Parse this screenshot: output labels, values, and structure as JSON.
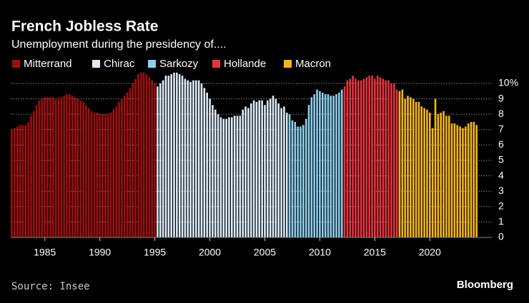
{
  "chart_data": {
    "type": "bar",
    "title": "French Jobless Rate",
    "subtitle": "Unemployment during the presidency of....",
    "source": "Source: Insee",
    "brand": "Bloomberg",
    "ylim": [
      0,
      10.8
    ],
    "yticks": [
      0,
      1,
      2,
      3,
      4,
      5,
      6,
      7,
      8,
      9,
      {
        "value": 10,
        "label": "10%"
      }
    ],
    "xlim": [
      1981.9,
      2024.4
    ],
    "xticks": [
      1985,
      1990,
      1995,
      2000,
      2005,
      2010,
      2015,
      2020
    ],
    "grid": true,
    "legend": "top",
    "series": [
      {
        "name": "Mitterrand",
        "color": "#a30d0d",
        "x": [
          1982,
          1982.25,
          1982.5,
          1982.75,
          1983,
          1983.25,
          1983.5,
          1983.75,
          1984,
          1984.25,
          1984.5,
          1984.75,
          1985,
          1985.25,
          1985.5,
          1985.75,
          1986,
          1986.25,
          1986.5,
          1986.75,
          1987,
          1987.25,
          1987.5,
          1987.75,
          1988,
          1988.25,
          1988.5,
          1988.75,
          1989,
          1989.25,
          1989.5,
          1989.75,
          1990,
          1990.25,
          1990.5,
          1990.75,
          1991,
          1991.25,
          1991.5,
          1991.75,
          1992,
          1992.25,
          1992.5,
          1992.75,
          1993,
          1993.25,
          1993.5,
          1993.75,
          1994,
          1994.25,
          1994.5,
          1994.75,
          1995
        ],
        "values": [
          7.0,
          7.1,
          7.2,
          7.3,
          7.3,
          7.3,
          7.5,
          7.9,
          8.2,
          8.6,
          8.9,
          9.0,
          9.1,
          9.1,
          9.1,
          9.1,
          9.0,
          9.1,
          9.1,
          9.2,
          9.3,
          9.3,
          9.2,
          9.1,
          9.0,
          8.9,
          8.8,
          8.6,
          8.4,
          8.2,
          8.1,
          8.1,
          8.0,
          8.0,
          8.0,
          8.0,
          8.1,
          8.3,
          8.5,
          8.8,
          9.0,
          9.2,
          9.4,
          9.7,
          10.0,
          10.3,
          10.6,
          10.7,
          10.7,
          10.6,
          10.4,
          10.2,
          10.0
        ]
      },
      {
        "name": "Chirac",
        "color": "#dcebf7",
        "x": [
          1995.25,
          1995.5,
          1995.75,
          1996,
          1996.25,
          1996.5,
          1996.75,
          1997,
          1997.25,
          1997.5,
          1997.75,
          1998,
          1998.25,
          1998.5,
          1998.75,
          1999,
          1999.25,
          1999.5,
          1999.75,
          2000,
          2000.25,
          2000.5,
          2000.75,
          2001,
          2001.25,
          2001.5,
          2001.75,
          2002,
          2002.25,
          2002.5,
          2002.75,
          2003,
          2003.25,
          2003.5,
          2003.75,
          2004,
          2004.25,
          2004.5,
          2004.75,
          2005,
          2005.25,
          2005.5,
          2005.75,
          2006,
          2006.25,
          2006.5,
          2006.75,
          2007
        ],
        "values": [
          9.8,
          10.0,
          10.2,
          10.5,
          10.5,
          10.6,
          10.7,
          10.7,
          10.6,
          10.5,
          10.3,
          10.2,
          10.1,
          10.2,
          10.2,
          10.2,
          10.0,
          9.7,
          9.4,
          9.0,
          8.6,
          8.3,
          8.0,
          7.8,
          7.7,
          7.7,
          7.8,
          7.8,
          7.9,
          7.9,
          7.9,
          8.3,
          8.5,
          8.4,
          8.7,
          8.9,
          8.8,
          8.9,
          8.9,
          8.6,
          8.9,
          9.0,
          9.2,
          9.0,
          8.7,
          8.4,
          8.5,
          8.1
        ]
      },
      {
        "name": "Sarkozy",
        "color": "#8ecfee",
        "x": [
          2007.25,
          2007.5,
          2007.75,
          2008,
          2008.25,
          2008.5,
          2008.75,
          2009,
          2009.25,
          2009.5,
          2009.75,
          2010,
          2010.25,
          2010.5,
          2010.75,
          2011,
          2011.25,
          2011.5,
          2011.75,
          2012
        ],
        "values": [
          8.0,
          7.6,
          7.5,
          7.2,
          7.2,
          7.3,
          7.7,
          8.6,
          9.1,
          9.3,
          9.6,
          9.5,
          9.4,
          9.3,
          9.3,
          9.2,
          9.2,
          9.3,
          9.4,
          9.6
        ]
      },
      {
        "name": "Hollande",
        "color": "#e6343e",
        "x": [
          2012.25,
          2012.5,
          2012.75,
          2013,
          2013.25,
          2013.5,
          2013.75,
          2014,
          2014.25,
          2014.5,
          2014.75,
          2015,
          2015.25,
          2015.5,
          2015.75,
          2016,
          2016.25,
          2016.5,
          2016.75,
          2017
        ],
        "values": [
          9.8,
          10.2,
          10.3,
          10.5,
          10.3,
          10.2,
          10.2,
          10.3,
          10.4,
          10.5,
          10.5,
          10.3,
          10.5,
          10.4,
          10.3,
          10.2,
          10.2,
          10.0,
          10.0,
          9.6
        ]
      },
      {
        "name": "Macron",
        "color": "#f4b61a",
        "x": [
          2017.25,
          2017.5,
          2017.75,
          2018,
          2018.25,
          2018.5,
          2018.75,
          2019,
          2019.25,
          2019.5,
          2019.75,
          2020,
          2020.25,
          2020.5,
          2020.75,
          2021,
          2021.25,
          2021.5,
          2021.75,
          2022,
          2022.25,
          2022.5,
          2022.75,
          2023,
          2023.25,
          2023.5,
          2023.75,
          2024,
          2024.25
        ],
        "values": [
          9.5,
          9.6,
          9.0,
          9.2,
          9.1,
          9.0,
          8.8,
          8.8,
          8.5,
          8.4,
          8.3,
          8.1,
          7.1,
          9.0,
          8.0,
          8.1,
          8.2,
          7.9,
          7.9,
          7.4,
          7.4,
          7.3,
          7.2,
          7.1,
          7.2,
          7.4,
          7.5,
          7.5,
          7.3
        ]
      }
    ]
  }
}
